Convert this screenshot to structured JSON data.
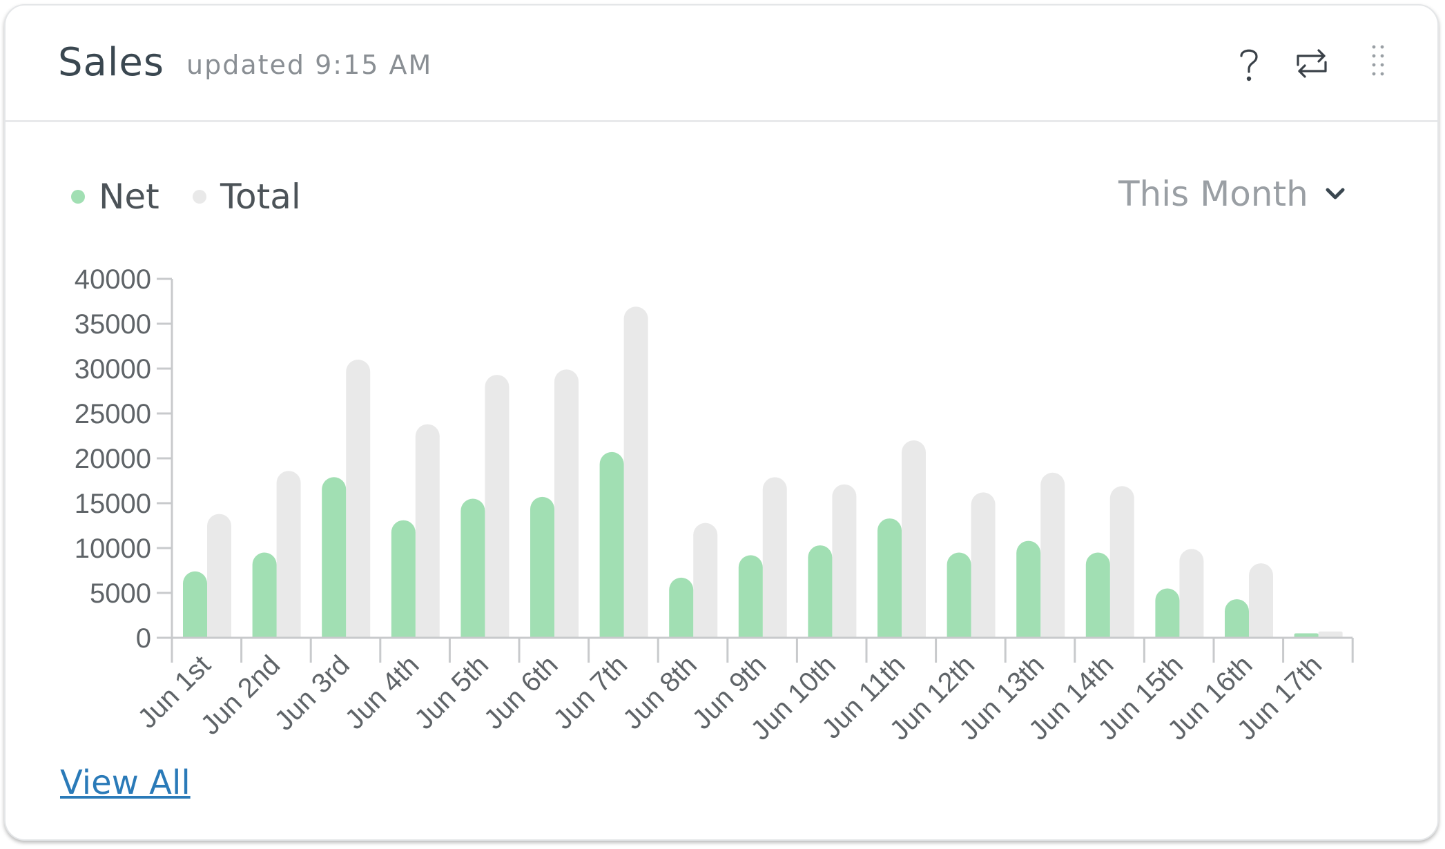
{
  "header": {
    "title": "Sales",
    "updated": "updated 9:15 AM",
    "icons": [
      "help-icon",
      "refresh-icon",
      "more-icon"
    ]
  },
  "legend": {
    "net_label": "Net",
    "total_label": "Total"
  },
  "range": {
    "selected": "This Month"
  },
  "footer": {
    "view_all": "View All"
  },
  "colors": {
    "net": "#a1dfb3",
    "total": "#e9e9e9",
    "axis": "#c8cacc",
    "link": "#2a7ab8"
  },
  "chart_data": {
    "type": "bar",
    "categories": [
      "Jun 1st",
      "Jun 2nd",
      "Jun 3rd",
      "Jun 4th",
      "Jun 5th",
      "Jun 6th",
      "Jun 7th",
      "Jun 8th",
      "Jun 9th",
      "Jun 10th",
      "Jun 11th",
      "Jun 12th",
      "Jun 13th",
      "Jun 14th",
      "Jun 15th",
      "Jun 16th",
      "Jun 17th"
    ],
    "series": [
      {
        "name": "Net",
        "values": [
          7400,
          9500,
          17900,
          13100,
          15500,
          15700,
          20700,
          6700,
          9200,
          10300,
          13300,
          9500,
          10800,
          9500,
          5500,
          4300,
          500
        ]
      },
      {
        "name": "Total",
        "values": [
          13800,
          18600,
          31000,
          23800,
          29300,
          29900,
          36900,
          12800,
          17900,
          17100,
          22000,
          16200,
          18400,
          16900,
          9900,
          8300,
          700
        ]
      }
    ],
    "yticks": [
      "0",
      "5000",
      "10000",
      "15000",
      "20000",
      "25000",
      "30000",
      "35000",
      "40000"
    ],
    "ylim": [
      0,
      40000
    ],
    "legend": "top-left",
    "grid": false
  }
}
